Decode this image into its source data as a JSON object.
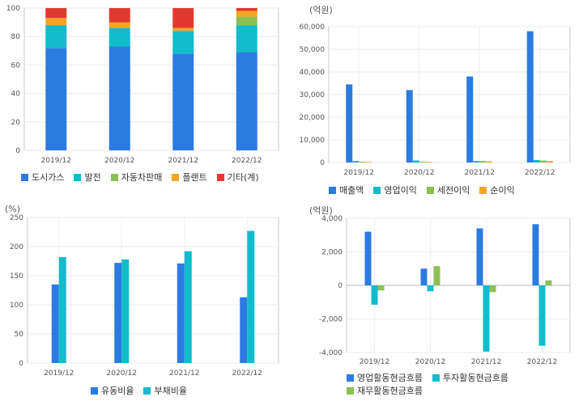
{
  "chart_data": [
    {
      "id": "c1",
      "type": "bar",
      "stacked": true,
      "categories": [
        "2019/12",
        "2020/12",
        "2021/12",
        "2022/12"
      ],
      "series": [
        {
          "name": "도시가스",
          "color": "#2b7be0",
          "values": [
            72,
            73,
            68,
            69
          ]
        },
        {
          "name": "발전",
          "color": "#12bccb",
          "values": [
            16,
            13,
            16,
            19
          ]
        },
        {
          "name": "자동차판매",
          "color": "#8cc152",
          "values": [
            0,
            0,
            0,
            6
          ]
        },
        {
          "name": "플랜트",
          "color": "#f5a623",
          "values": [
            5,
            4,
            2,
            4
          ]
        },
        {
          "name": "기타(계)",
          "color": "#e03a2f",
          "values": [
            7,
            10,
            14,
            2
          ]
        }
      ],
      "ylim": [
        0,
        100
      ],
      "yticks": [
        "0",
        "20",
        "40",
        "60",
        "80",
        "100"
      ],
      "unit": "",
      "grid": true
    },
    {
      "id": "c2",
      "type": "bar",
      "categories": [
        "2019/12",
        "2020/12",
        "2021/12",
        "2022/12"
      ],
      "series": [
        {
          "name": "매출액",
          "color": "#2b7be0",
          "values": [
            34500,
            32000,
            38000,
            58000
          ]
        },
        {
          "name": "영업이익",
          "color": "#12bccb",
          "values": [
            700,
            900,
            700,
            1100
          ]
        },
        {
          "name": "세전이익",
          "color": "#8cc152",
          "values": [
            400,
            400,
            700,
            900
          ]
        },
        {
          "name": "순이익",
          "color": "#f5a623",
          "values": [
            300,
            300,
            500,
            700
          ]
        }
      ],
      "ylim": [
        0,
        60000
      ],
      "yticks": [
        "0",
        "10,000",
        "20,000",
        "30,000",
        "40,000",
        "50,000",
        "60,000"
      ],
      "unit": "(억원)",
      "grid": true
    },
    {
      "id": "c3",
      "type": "bar",
      "categories": [
        "2019/12",
        "2020/12",
        "2021/12",
        "2022/12"
      ],
      "series": [
        {
          "name": "유동비율",
          "color": "#2b7be0",
          "values": [
            135,
            172,
            171,
            113
          ]
        },
        {
          "name": "부채비율",
          "color": "#12bccb",
          "values": [
            182,
            178,
            192,
            227
          ]
        }
      ],
      "ylim": [
        0,
        250
      ],
      "yticks": [
        "0",
        "50",
        "100",
        "150",
        "200",
        "250"
      ],
      "unit": "(%)",
      "grid": true
    },
    {
      "id": "c4",
      "type": "bar",
      "categories": [
        "2019/12",
        "2020/12",
        "2021/12",
        "2022/12"
      ],
      "series": [
        {
          "name": "영업활동현금흐름",
          "color": "#2b7be0",
          "values": [
            3200,
            1000,
            3400,
            3650
          ]
        },
        {
          "name": "투자활동현금흐름",
          "color": "#12bccb",
          "values": [
            -1150,
            -350,
            -3950,
            -3600
          ]
        },
        {
          "name": "재무활동현금흐름",
          "color": "#8cc152",
          "values": [
            -300,
            1150,
            -400,
            300
          ]
        }
      ],
      "ylim": [
        -4000,
        4000
      ],
      "yticks": [
        "-4,000",
        "-2,000",
        "0",
        "2,000",
        "4,000"
      ],
      "unit": "(억원)",
      "grid": true
    }
  ]
}
